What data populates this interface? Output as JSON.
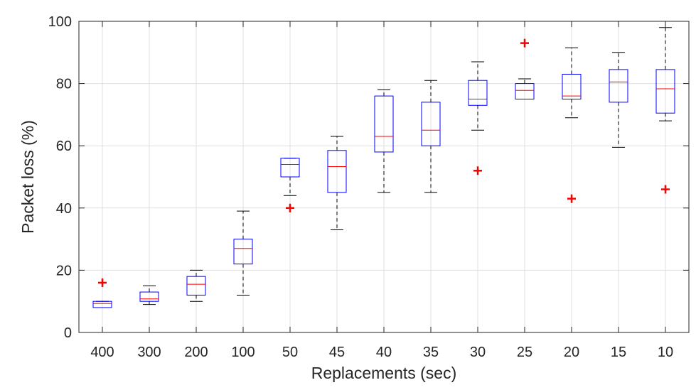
{
  "chart_data": {
    "type": "box",
    "title": "",
    "xlabel": "Replacements (sec)",
    "ylabel": "Packet loss (%)",
    "ylim": [
      0,
      100
    ],
    "yticks": [
      0,
      20,
      40,
      60,
      80,
      100
    ],
    "grid": true,
    "categories": [
      "400",
      "300",
      "200",
      "100",
      "50",
      "45",
      "40",
      "35",
      "30",
      "25",
      "20",
      "15",
      "10"
    ],
    "boxes": [
      {
        "category": "400",
        "whisker_low": 8,
        "q1": 8,
        "median": 9.3,
        "q3": 10,
        "whisker_high": 10,
        "outliers": [
          16
        ]
      },
      {
        "category": "300",
        "whisker_low": 9,
        "q1": 10,
        "median": 10.8,
        "q3": 13,
        "whisker_high": 15,
        "outliers": []
      },
      {
        "category": "200",
        "whisker_low": 10,
        "q1": 12,
        "median": 15.5,
        "q3": 18,
        "whisker_high": 20,
        "outliers": []
      },
      {
        "category": "100",
        "whisker_low": 12,
        "q1": 22,
        "median": 27,
        "q3": 30,
        "whisker_high": 39,
        "outliers": []
      },
      {
        "category": "50",
        "whisker_low": 44,
        "q1": 50,
        "median": 54,
        "q3": 56,
        "whisker_high": 56,
        "outliers": [
          40
        ]
      },
      {
        "category": "45",
        "whisker_low": 33,
        "q1": 45,
        "median": 53.3,
        "q3": 58.5,
        "whisker_high": 63,
        "outliers": []
      },
      {
        "category": "40",
        "whisker_low": 45,
        "q1": 58,
        "median": 63,
        "q3": 76,
        "whisker_high": 78,
        "outliers": []
      },
      {
        "category": "35",
        "whisker_low": 45,
        "q1": 60,
        "median": 65,
        "q3": 74,
        "whisker_high": 81,
        "outliers": []
      },
      {
        "category": "30",
        "whisker_low": 65,
        "q1": 73,
        "median": 75,
        "q3": 81,
        "whisker_high": 87,
        "outliers": [
          52
        ]
      },
      {
        "category": "25",
        "whisker_low": 75,
        "q1": 75,
        "median": 77.8,
        "q3": 80,
        "whisker_high": 81.5,
        "outliers": [
          93
        ]
      },
      {
        "category": "20",
        "whisker_low": 69,
        "q1": 75,
        "median": 76,
        "q3": 83,
        "whisker_high": 91.5,
        "outliers": [
          43
        ]
      },
      {
        "category": "15",
        "whisker_low": 59.5,
        "q1": 74,
        "median": 80.5,
        "q3": 84.5,
        "whisker_high": 90,
        "outliers": []
      },
      {
        "category": "10",
        "whisker_low": 68,
        "q1": 70.5,
        "median": 78.3,
        "q3": 84.5,
        "whisker_high": 98,
        "outliers": [
          46
        ]
      }
    ],
    "colors": {
      "box": "#0000ff",
      "median": "#ff0000",
      "whisker": "#000000",
      "outlier": "#ff0000",
      "grid": "#dfdfdf",
      "axis": "#262626"
    }
  }
}
